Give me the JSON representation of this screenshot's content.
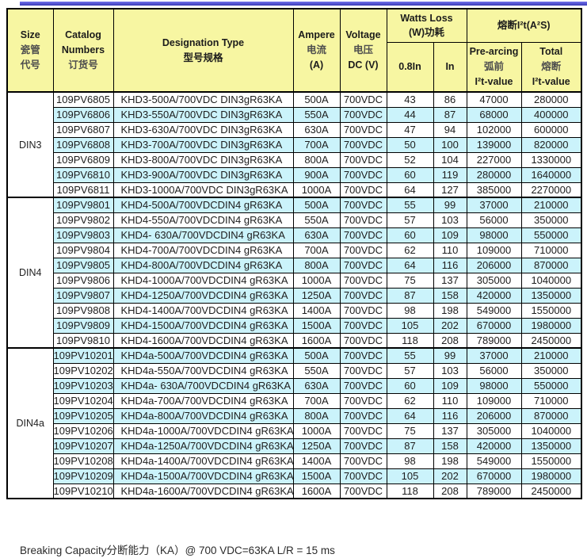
{
  "colors": {
    "header_bg": "#F7F6A2",
    "row_alt_bg": "#CBF3FB",
    "row_bg": "#FFFFFF",
    "top_bar_blue": "#4A4AC9",
    "border": "#000000"
  },
  "header": {
    "size": {
      "en": "Size",
      "cn1": "瓷管",
      "cn2": "代号"
    },
    "catalog": {
      "en1": "Catalog",
      "en2": "Numbers",
      "cn": "订货号"
    },
    "designation": {
      "en": "Designation Type",
      "cn": "型号规格"
    },
    "ampere": {
      "en": "Ampere",
      "cn": "电流",
      "unit": "(A)"
    },
    "voltage": {
      "en": "Voltage",
      "cn": "电压",
      "unit": "DC (V)"
    },
    "watts_loss": {
      "en": "Watts Loss",
      "cn": "(W)功耗"
    },
    "i2t": {
      "title": "熔断I²t(A²S)"
    },
    "sub_08in": "0.8In",
    "sub_in": "In",
    "prearcing": {
      "en": "Pre-arcing",
      "cn": "弧前",
      "value": "I²t-value"
    },
    "total": {
      "en": "Total",
      "cn": "熔断",
      "value": "I²t-value"
    }
  },
  "table": {
    "groups": [
      {
        "size": "DIN3",
        "rows": [
          [
            "109PV6805",
            "KHD3-500A/700VDC DIN3gR63KA",
            "500A",
            "700VDC",
            "43",
            "86",
            "47000",
            "280000"
          ],
          [
            "109PV6806",
            "KHD3-550A/700VDC DIN3gR63KA",
            "550A",
            "700VDC",
            "44",
            "87",
            "68000",
            "400000"
          ],
          [
            "109PV6807",
            "KHD3-630A/700VDC DIN3gR63KA",
            "630A",
            "700VDC",
            "47",
            "94",
            "102000",
            "600000"
          ],
          [
            "109PV6808",
            "KHD3-700A/700VDC DIN3gR63KA",
            "700A",
            "700VDC",
            "50",
            "100",
            "139000",
            "820000"
          ],
          [
            "109PV6809",
            "KHD3-800A/700VDC DIN3gR63KA",
            "800A",
            "700VDC",
            "52",
            "104",
            "227000",
            "1330000"
          ],
          [
            "109PV6810",
            "KHD3-900A/700VDC DIN3gR63KA",
            "900A",
            "700VDC",
            "60",
            "119",
            "280000",
            "1640000"
          ],
          [
            "109PV6811",
            "KHD3-1000A/700VDC DIN3gR63KA",
            "1000A",
            "700VDC",
            "64",
            "127",
            "385000",
            "2270000"
          ]
        ]
      },
      {
        "size": "DIN4",
        "rows": [
          [
            "109PV9801",
            "KHD4-500A/700VDCDIN4 gR63KA",
            "500A",
            "700VDC",
            "55",
            "99",
            "37000",
            "210000"
          ],
          [
            "109PV9802",
            "KHD4-550A/700VDCDIN4 gR63KA",
            "550A",
            "700VDC",
            "57",
            "103",
            "56000",
            "350000"
          ],
          [
            "109PV9803",
            "KHD4- 630A/700VDCDIN4 gR63KA",
            "630A",
            "700VDC",
            "60",
            "109",
            "98000",
            "550000"
          ],
          [
            "109PV9804",
            "KHD4-700A/700VDCDIN4 gR63KA",
            "700A",
            "700VDC",
            "62",
            "110",
            "109000",
            "710000"
          ],
          [
            "109PV9805",
            "KHD4-800A/700VDCDIN4 gR63KA",
            "800A",
            "700VDC",
            "64",
            "116",
            "206000",
            "870000"
          ],
          [
            "109PV9806",
            "KHD4-1000A/700VDCDIN4 gR63KA",
            "1000A",
            "700VDC",
            "75",
            "137",
            "305000",
            "1040000"
          ],
          [
            "109PV9807",
            "KHD4-1250A/700VDCDIN4 gR63KA",
            "1250A",
            "700VDC",
            "87",
            "158",
            "420000",
            "1350000"
          ],
          [
            "109PV9808",
            "KHD4-1400A/700VDCDIN4 gR63KA",
            "1400A",
            "700VDC",
            "98",
            "198",
            "549000",
            "1550000"
          ],
          [
            "109PV9809",
            "KHD4-1500A/700VDCDIN4 gR63KA",
            "1500A",
            "700VDC",
            "105",
            "202",
            "670000",
            "1980000"
          ],
          [
            "109PV9810",
            "KHD4-1600A/700VDCDIN4 gR63KA",
            "1600A",
            "700VDC",
            "118",
            "208",
            "789000",
            "2450000"
          ]
        ]
      },
      {
        "size": "DIN4a",
        "rows": [
          [
            "109PV10201",
            "KHD4a-500A/700VDCDIN4 gR63KA",
            "500A",
            "700VDC",
            "55",
            "99",
            "37000",
            "210000"
          ],
          [
            "109PV10202",
            "KHD4a-550A/700VDCDIN4 gR63KA",
            "550A",
            "700VDC",
            "57",
            "103",
            "56000",
            "350000"
          ],
          [
            "109PV10203",
            "KHD4a- 630A/700VDCDIN4 gR63KA",
            "630A",
            "700VDC",
            "60",
            "109",
            "98000",
            "550000"
          ],
          [
            "109PV10204",
            "KHD4a-700A/700VDCDIN4 gR63KA",
            "700A",
            "700VDC",
            "62",
            "110",
            "109000",
            "710000"
          ],
          [
            "109PV10205",
            "KHD4a-800A/700VDCDIN4 gR63KA",
            "800A",
            "700VDC",
            "64",
            "116",
            "206000",
            "870000"
          ],
          [
            "109PV10206",
            "KHD4a-1000A/700VDCDIN4 gR63KA",
            "1000A",
            "700VDC",
            "75",
            "137",
            "305000",
            "1040000"
          ],
          [
            "109PV10207",
            "KHD4a-1250A/700VDCDIN4 gR63KA",
            "1250A",
            "700VDC",
            "87",
            "158",
            "420000",
            "1350000"
          ],
          [
            "109PV10208",
            "KHD4a-1400A/700VDCDIN4 gR63KA",
            "1400A",
            "700VDC",
            "98",
            "198",
            "549000",
            "1550000"
          ],
          [
            "109PV10209",
            "KHD4a-1500A/700VDCDIN4 gR63KA",
            "1500A",
            "700VDC",
            "105",
            "202",
            "670000",
            "1980000"
          ],
          [
            "109PV10210",
            "KHD4a-1600A/700VDCDIN4 gR63KA",
            "1600A",
            "700VDC",
            "118",
            "208",
            "789000",
            "2450000"
          ]
        ]
      }
    ]
  },
  "footer": {
    "note": "Breaking Capacity分断能力（KA）@ 700 VDC=63KA   L/R = 15 ms"
  }
}
